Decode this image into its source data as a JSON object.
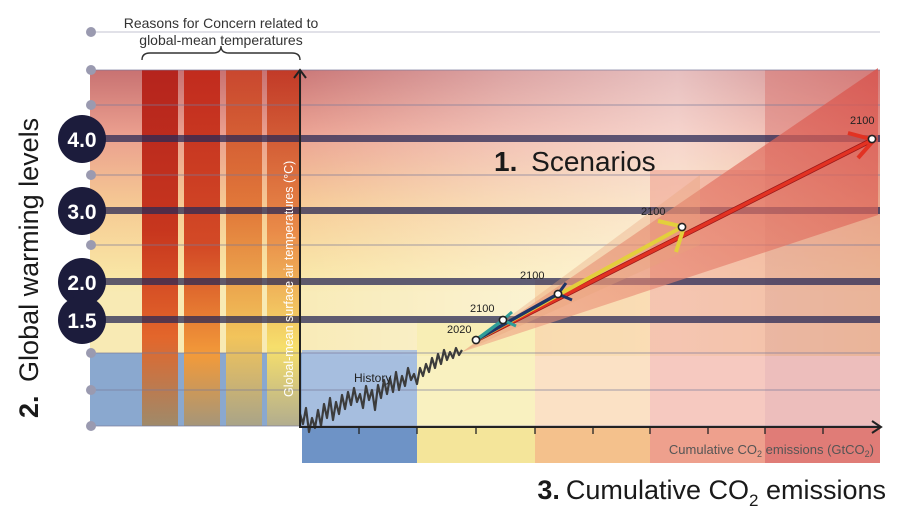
{
  "rfc_header": {
    "line1": "Reasons for Concern related to",
    "line2": "global-mean temperatures"
  },
  "warming_levels": {
    "section_number": "2.",
    "title": "Global warming levels",
    "levels": [
      "4.0",
      "3.0",
      "2.0",
      "1.5"
    ]
  },
  "y_axis_label": "Global-mean surface air temperatures (°C)",
  "scenarios": {
    "section_number": "1.",
    "title": "Scenarios",
    "history_label": "History",
    "year_labels": {
      "start": "2020",
      "low": "2100",
      "low_mid": "2100",
      "mid_high": "2100",
      "high": "2100"
    }
  },
  "x_axis": {
    "label_prefix": "Cumulative CO",
    "label_sub": "2",
    "label_suffix": " emissions (GtCO",
    "label_sub2": "2",
    "label_end": ")"
  },
  "bottom_title": {
    "section_number": "3.",
    "text_prefix": "Cumulative CO",
    "text_sub": "2",
    "text_suffix": " emissions"
  },
  "colors": {
    "badge": "#1c1c3c",
    "level_line": "#2a2a55",
    "arrow_red": "#e23222",
    "arrow_yellow": "#e3cf3c",
    "arrow_navy": "#1f3567",
    "arrow_teal": "#2f9d98",
    "history_line": "#3c3c3c"
  }
}
